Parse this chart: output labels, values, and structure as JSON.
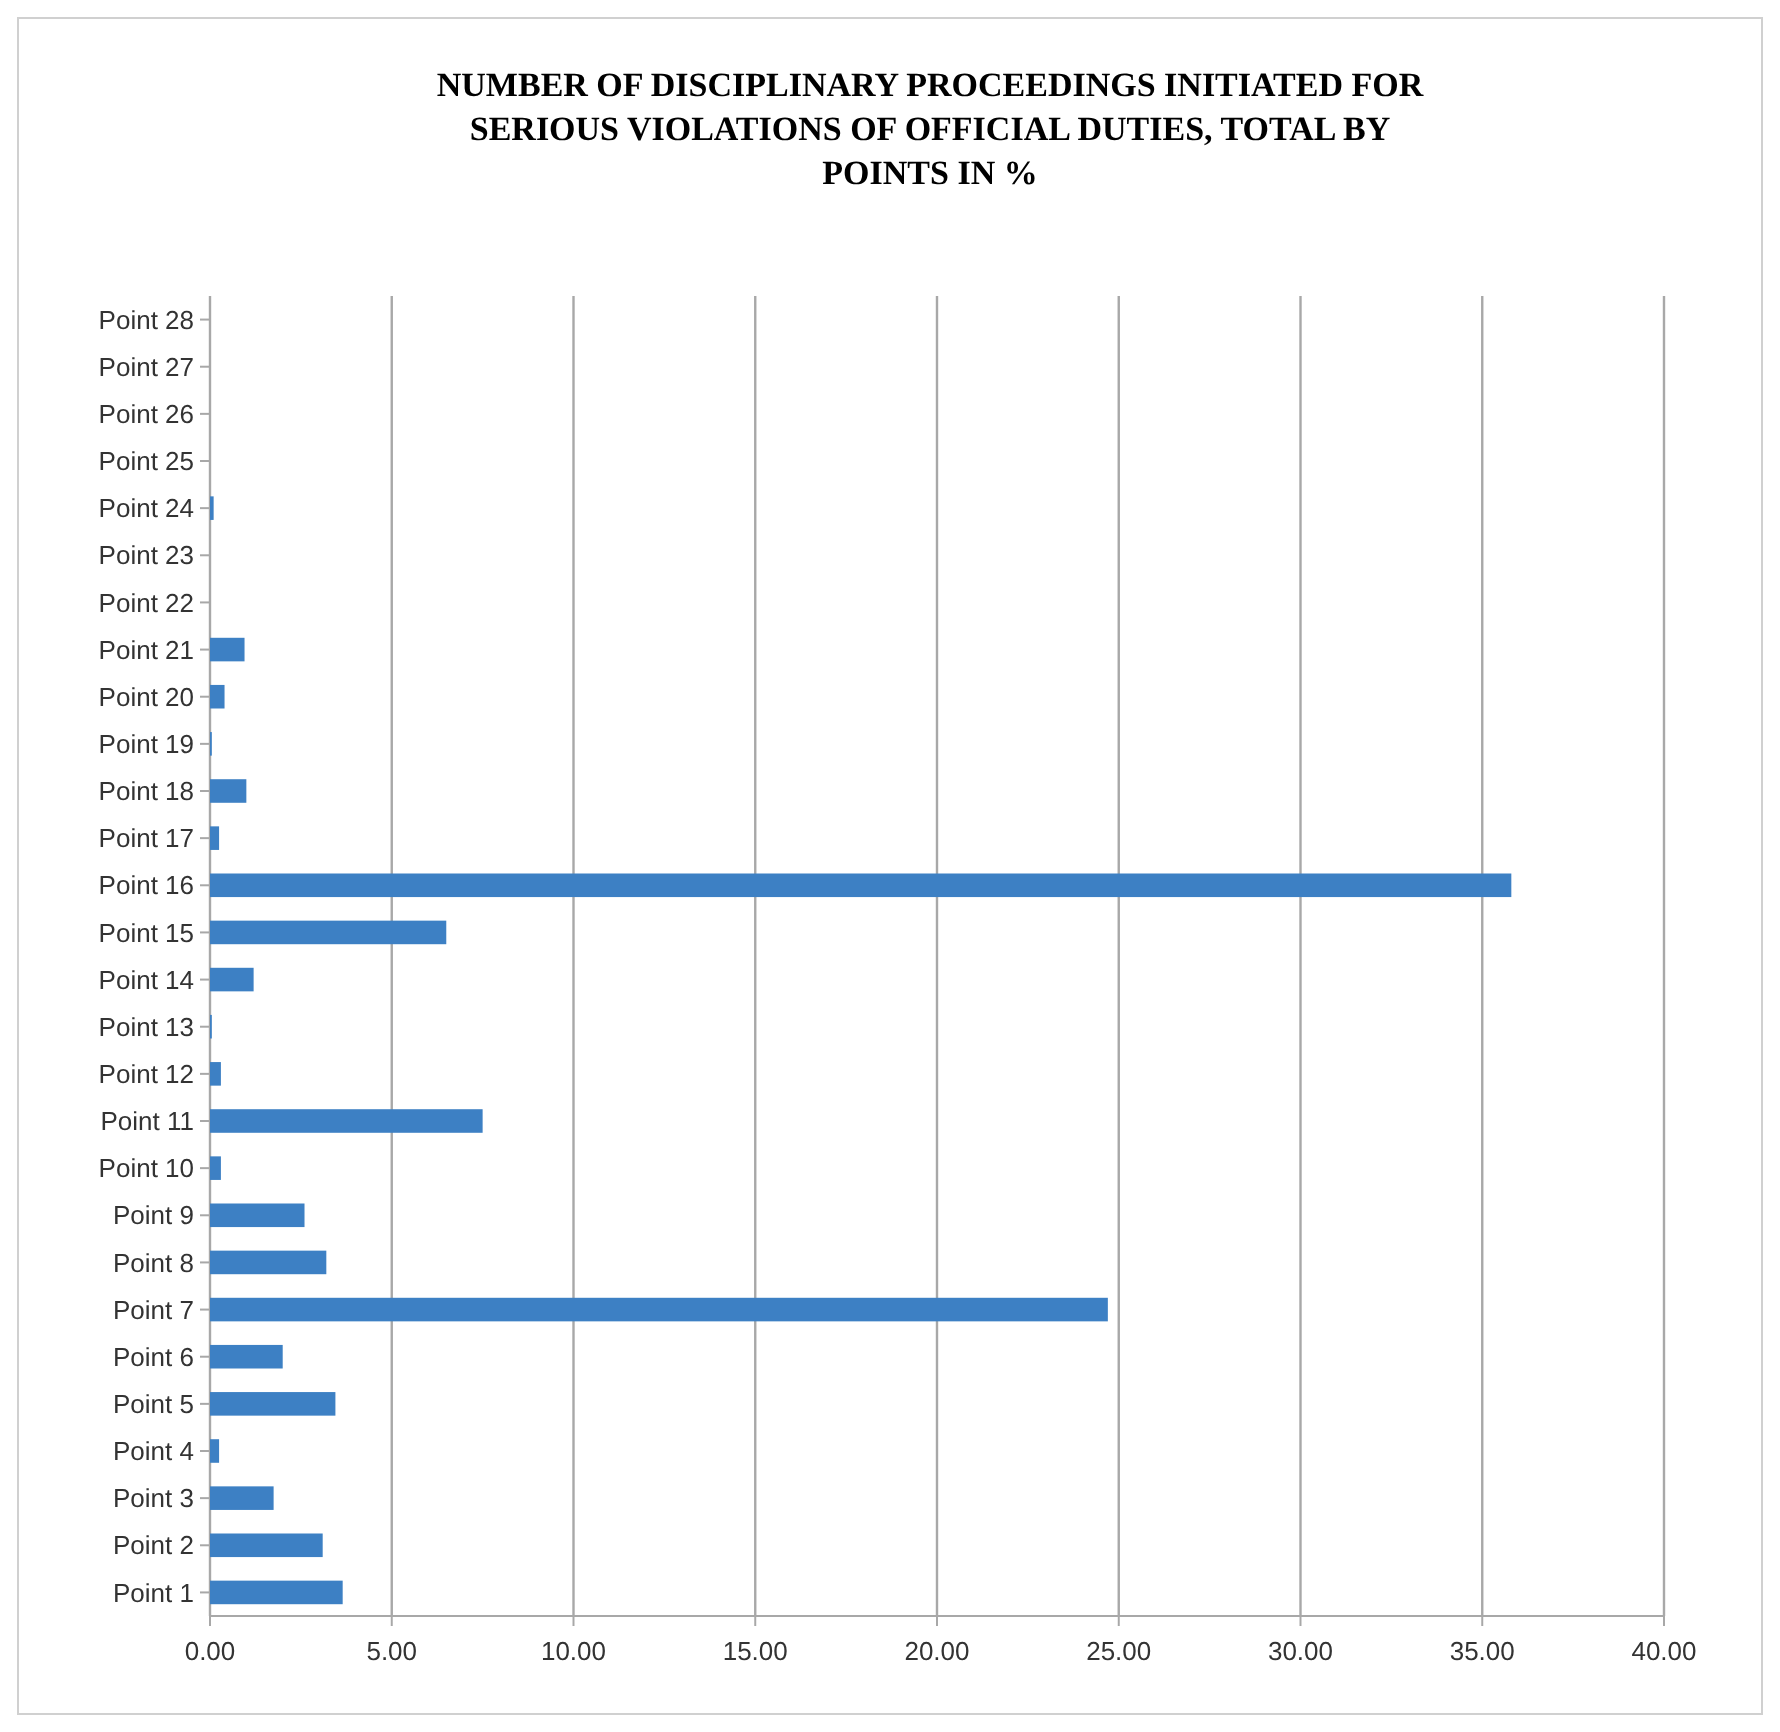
{
  "chart_data": {
    "type": "bar",
    "orientation": "horizontal",
    "title": "NUMBER OF DISCIPLINARY PROCEEDINGS INITIATED FOR SERIOUS VIOLATIONS OF OFFICIAL DUTIES, TOTAL BY POINTS IN %",
    "categories": [
      "Point 28",
      "Point 27",
      "Point 26",
      "Point 25",
      "Point 24",
      "Point 23",
      "Point 22",
      "Point 21",
      "Point 20",
      "Point 19",
      "Point 18",
      "Point 17",
      "Point 16",
      "Point 15",
      "Point 14",
      "Point 13",
      "Point 12",
      "Point 11",
      "Point 10",
      "Point 9",
      "Point 8",
      "Point 7",
      "Point 6",
      "Point 5",
      "Point 4",
      "Point 3",
      "Point 2",
      "Point 1"
    ],
    "values": [
      0,
      0,
      0,
      0,
      0.1,
      0,
      0,
      0.95,
      0.4,
      0.05,
      1.0,
      0.25,
      35.8,
      6.5,
      1.2,
      0.05,
      0.3,
      7.5,
      0.3,
      2.6,
      3.2,
      24.7,
      2.0,
      3.45,
      0.25,
      1.75,
      3.1,
      3.65
    ],
    "color": "#3d80c4",
    "xlim": [
      0,
      40
    ],
    "xticks": [
      {
        "value": 0,
        "label": "0.00"
      },
      {
        "value": 5,
        "label": "5.00"
      },
      {
        "value": 10,
        "label": "10.00"
      },
      {
        "value": 15,
        "label": "15.00"
      },
      {
        "value": 20,
        "label": "20.00"
      },
      {
        "value": 25,
        "label": "25.00"
      },
      {
        "value": 30,
        "label": "30.00"
      },
      {
        "value": 35,
        "label": "35.00"
      },
      {
        "value": 40,
        "label": "40.00"
      }
    ],
    "grid": "x"
  }
}
